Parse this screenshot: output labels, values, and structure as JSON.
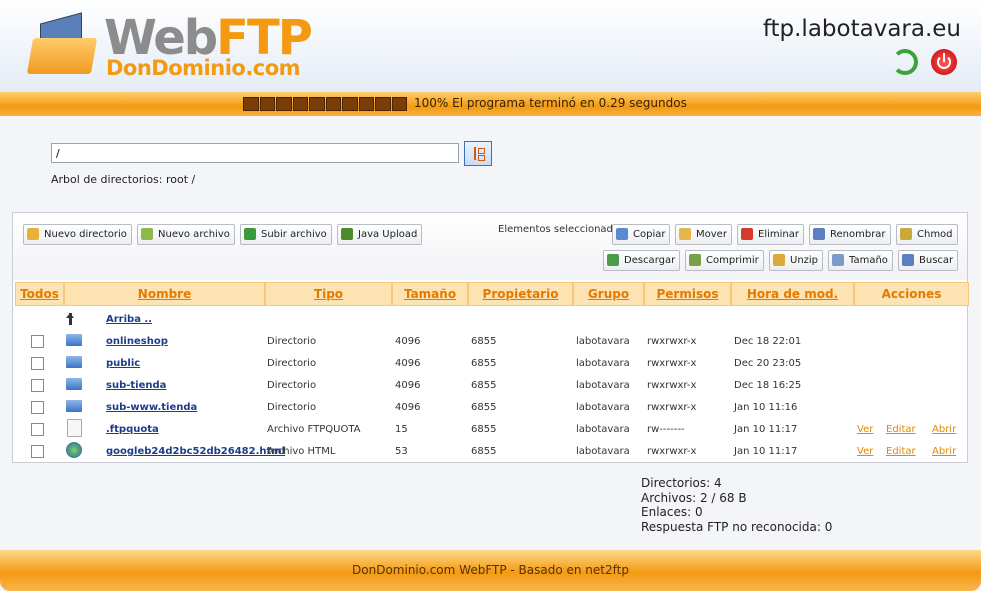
{
  "header": {
    "logo_web": "Web",
    "logo_ftp": "FTP",
    "logo_sub": "DonDominio.com",
    "server": "ftp.labotavara.eu"
  },
  "status": {
    "message": "100% El programa terminó en 0.29 segundos"
  },
  "path": {
    "value": "/",
    "tree_label": "Arbol de directorios: root /"
  },
  "toolbar": {
    "left": [
      "Nuevo directorio",
      "Nuevo archivo",
      "Subir archivo",
      "Java Upload"
    ],
    "selected_label": "Elementos seleccionados:",
    "right_row1": [
      "Copiar",
      "Mover",
      "Eliminar",
      "Renombrar",
      "Chmod"
    ],
    "right_row2": [
      "Descargar",
      "Comprimir",
      "Unzip",
      "Tamaño",
      "Buscar"
    ]
  },
  "table": {
    "columns": [
      "Todos",
      "Nombre",
      "Tipo",
      "Tamaño",
      "Propietario",
      "Grupo",
      "Permisos",
      "Hora de mod.",
      "Acciones"
    ],
    "up": "Arriba ..",
    "rows": [
      {
        "cells": [
          "onlineshop",
          "Directorio",
          "4096",
          "6855",
          "labotavara",
          "rwxrwxr-x",
          "Dec 18 22:01"
        ]
      },
      {
        "cells": [
          "public",
          "Directorio",
          "4096",
          "6855",
          "labotavara",
          "rwxrwxr-x",
          "Dec 20 23:05"
        ]
      },
      {
        "cells": [
          "sub-tienda",
          "Directorio",
          "4096",
          "6855",
          "labotavara",
          "rwxrwxr-x",
          "Dec 18 16:25"
        ]
      },
      {
        "cells": [
          "sub-www.tienda",
          "Directorio",
          "4096",
          "6855",
          "labotavara",
          "rwxrwxr-x",
          "Jan 10 11:16"
        ]
      },
      {
        "cells": [
          ".ftpquota",
          "Archivo FTPQUOTA",
          "15",
          "6855",
          "labotavara",
          "rw-------",
          "Jan 10 11:17"
        ],
        "actions": [
          "Ver",
          "Editar",
          "Abrir"
        ]
      },
      {
        "cells": [
          "googleb24d2bc52db26482.html",
          "Archivo HTML",
          "53",
          "6855",
          "labotavara",
          "rwxrwxr-x",
          "Jan 10 11:17"
        ],
        "actions": [
          "Ver",
          "Editar",
          "Abrir"
        ]
      }
    ]
  },
  "summary": [
    "Directorios: 4",
    "Archivos: 2 / 68 B",
    "Enlaces: 0",
    "Respuesta FTP no reconocida: 0"
  ],
  "footer": "DonDominio.com WebFTP - Basado en net2ftp"
}
